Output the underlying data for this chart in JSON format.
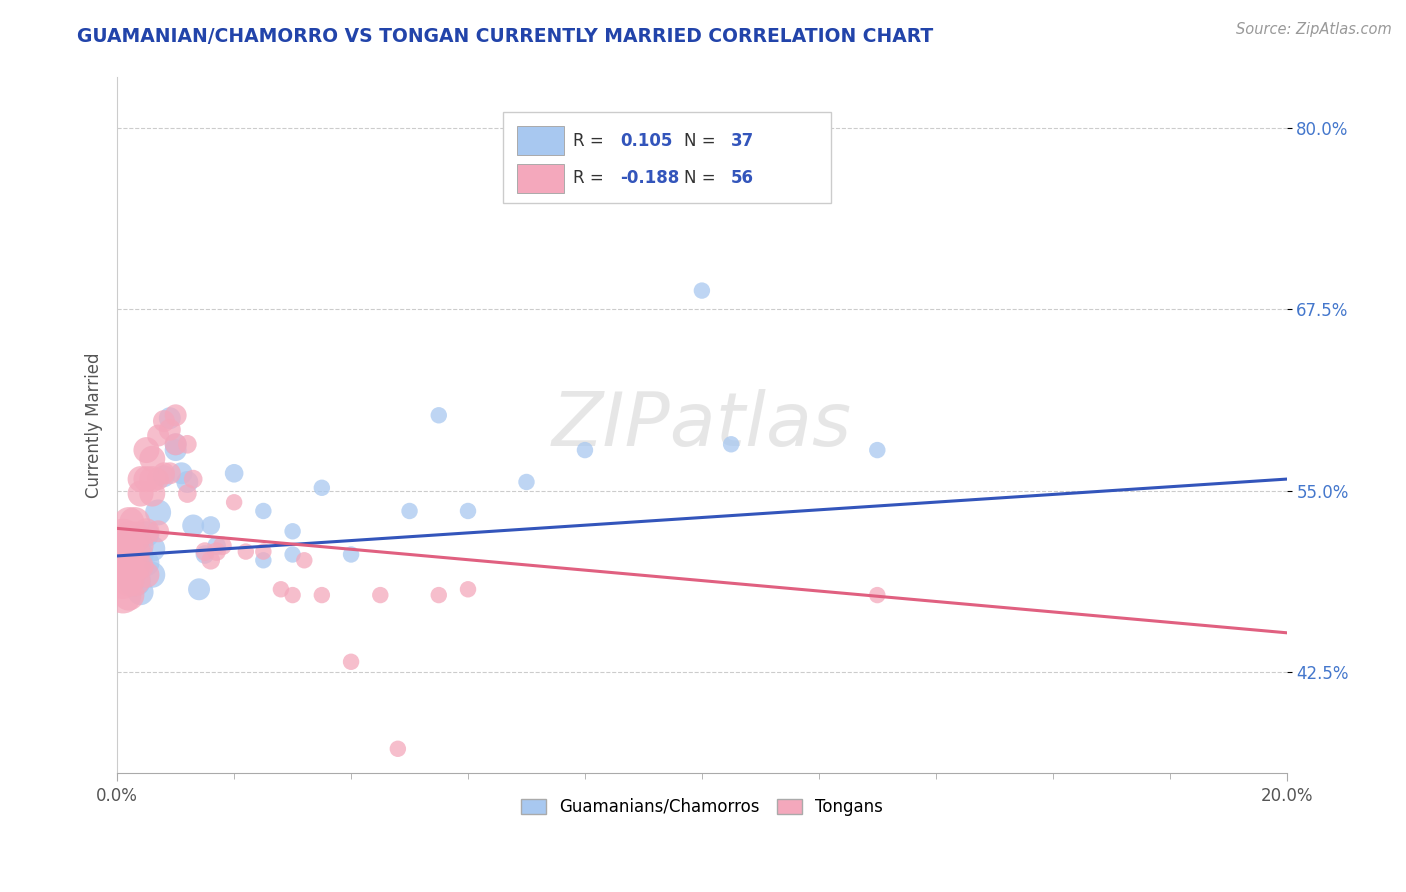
{
  "title": "GUAMANIAN/CHAMORRO VS TONGAN CURRENTLY MARRIED CORRELATION CHART",
  "source": "Source: ZipAtlas.com",
  "ylabel": "Currently Married",
  "y_ticks": [
    0.425,
    0.55,
    0.675,
    0.8
  ],
  "y_tick_labels": [
    "42.5%",
    "55.0%",
    "67.5%",
    "80.0%"
  ],
  "xlim": [
    0.0,
    0.2
  ],
  "ylim": [
    0.355,
    0.835
  ],
  "r_blue": "0.105",
  "n_blue": "37",
  "r_pink": "-0.188",
  "n_pink": "56",
  "legend_label_blue": "Guamanians/Chamorros",
  "legend_label_pink": "Tongans",
  "blue_color": "#a8c8f0",
  "pink_color": "#f4a8bc",
  "blue_line_color": "#3355bb",
  "pink_line_color": "#e06080",
  "title_color": "#2244aa",
  "blue_trend": [
    0.0,
    0.505,
    0.2,
    0.558
  ],
  "pink_trend": [
    0.0,
    0.524,
    0.2,
    0.452
  ],
  "blue_scatter": [
    [
      0.001,
      0.51
    ],
    [
      0.002,
      0.5
    ],
    [
      0.003,
      0.505
    ],
    [
      0.003,
      0.488
    ],
    [
      0.004,
      0.506
    ],
    [
      0.004,
      0.48
    ],
    [
      0.005,
      0.52
    ],
    [
      0.005,
      0.5
    ],
    [
      0.006,
      0.51
    ],
    [
      0.006,
      0.492
    ],
    [
      0.007,
      0.535
    ],
    [
      0.008,
      0.56
    ],
    [
      0.009,
      0.6
    ],
    [
      0.01,
      0.578
    ],
    [
      0.01,
      0.582
    ],
    [
      0.011,
      0.562
    ],
    [
      0.012,
      0.556
    ],
    [
      0.013,
      0.526
    ],
    [
      0.014,
      0.482
    ],
    [
      0.015,
      0.506
    ],
    [
      0.016,
      0.526
    ],
    [
      0.017,
      0.512
    ],
    [
      0.02,
      0.562
    ],
    [
      0.025,
      0.536
    ],
    [
      0.025,
      0.502
    ],
    [
      0.03,
      0.522
    ],
    [
      0.03,
      0.506
    ],
    [
      0.035,
      0.552
    ],
    [
      0.04,
      0.506
    ],
    [
      0.05,
      0.536
    ],
    [
      0.055,
      0.602
    ],
    [
      0.06,
      0.536
    ],
    [
      0.07,
      0.556
    ],
    [
      0.08,
      0.578
    ],
    [
      0.1,
      0.688
    ],
    [
      0.105,
      0.582
    ],
    [
      0.13,
      0.578
    ]
  ],
  "pink_scatter": [
    [
      0.001,
      0.518
    ],
    [
      0.001,
      0.508
    ],
    [
      0.001,
      0.498
    ],
    [
      0.001,
      0.488
    ],
    [
      0.001,
      0.478
    ],
    [
      0.002,
      0.528
    ],
    [
      0.002,
      0.518
    ],
    [
      0.002,
      0.508
    ],
    [
      0.002,
      0.498
    ],
    [
      0.002,
      0.488
    ],
    [
      0.002,
      0.478
    ],
    [
      0.003,
      0.528
    ],
    [
      0.003,
      0.518
    ],
    [
      0.003,
      0.508
    ],
    [
      0.003,
      0.498
    ],
    [
      0.003,
      0.488
    ],
    [
      0.004,
      0.558
    ],
    [
      0.004,
      0.548
    ],
    [
      0.004,
      0.512
    ],
    [
      0.004,
      0.498
    ],
    [
      0.005,
      0.578
    ],
    [
      0.005,
      0.558
    ],
    [
      0.005,
      0.522
    ],
    [
      0.005,
      0.492
    ],
    [
      0.006,
      0.572
    ],
    [
      0.006,
      0.558
    ],
    [
      0.006,
      0.548
    ],
    [
      0.007,
      0.588
    ],
    [
      0.007,
      0.558
    ],
    [
      0.007,
      0.522
    ],
    [
      0.008,
      0.598
    ],
    [
      0.008,
      0.562
    ],
    [
      0.009,
      0.592
    ],
    [
      0.009,
      0.562
    ],
    [
      0.01,
      0.602
    ],
    [
      0.01,
      0.582
    ],
    [
      0.012,
      0.582
    ],
    [
      0.012,
      0.548
    ],
    [
      0.013,
      0.558
    ],
    [
      0.015,
      0.508
    ],
    [
      0.016,
      0.502
    ],
    [
      0.017,
      0.508
    ],
    [
      0.018,
      0.512
    ],
    [
      0.02,
      0.542
    ],
    [
      0.022,
      0.508
    ],
    [
      0.025,
      0.508
    ],
    [
      0.028,
      0.482
    ],
    [
      0.03,
      0.478
    ],
    [
      0.032,
      0.502
    ],
    [
      0.035,
      0.478
    ],
    [
      0.04,
      0.432
    ],
    [
      0.045,
      0.478
    ],
    [
      0.048,
      0.372
    ],
    [
      0.055,
      0.478
    ],
    [
      0.06,
      0.482
    ],
    [
      0.13,
      0.478
    ]
  ]
}
